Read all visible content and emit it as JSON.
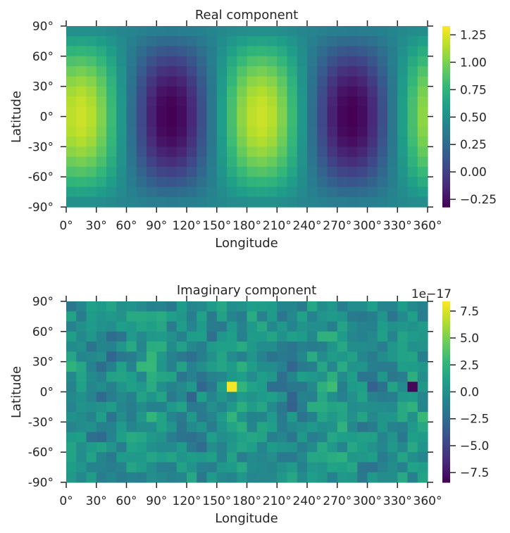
{
  "chart_data": [
    {
      "type": "heatmap",
      "title": "Real component",
      "xlabel": "Longitude",
      "ylabel": "Latitude",
      "xlim": [
        0,
        360
      ],
      "ylim": [
        -90,
        90
      ],
      "x_ticks": [
        0,
        30,
        60,
        90,
        120,
        150,
        180,
        210,
        240,
        270,
        300,
        330,
        360
      ],
      "x_tick_labels": [
        "0°",
        "30°",
        "60°",
        "90°",
        "120°",
        "150°",
        "180°",
        "210°",
        "240°",
        "270°",
        "300°",
        "330°",
        "360°"
      ],
      "y_ticks": [
        90,
        60,
        30,
        0,
        -30,
        -60,
        -90
      ],
      "y_tick_labels": [
        "90°",
        "60°",
        "30°",
        "0°",
        "-30°",
        "-60°",
        "-90°"
      ],
      "grid_cols": 36,
      "grid_rows": 18,
      "colormap": "viridis",
      "colorbar": {
        "min": -0.32,
        "max": 1.33,
        "ticks": [
          1.25,
          1.0,
          0.75,
          0.5,
          0.25,
          0.0,
          -0.25
        ],
        "tick_labels": [
          "1.25",
          "1.00",
          "0.75",
          "0.50",
          "0.25",
          "0.00",
          "−0.25"
        ],
        "offset_label": ""
      }
    },
    {
      "type": "heatmap",
      "title": "Imaginary component",
      "xlabel": "Longitude",
      "ylabel": "Latitude",
      "xlim": [
        0,
        360
      ],
      "ylim": [
        -90,
        90
      ],
      "x_ticks": [
        0,
        30,
        60,
        90,
        120,
        150,
        180,
        210,
        240,
        270,
        300,
        330,
        360
      ],
      "x_tick_labels": [
        "0°",
        "30°",
        "60°",
        "90°",
        "120°",
        "150°",
        "180°",
        "210°",
        "240°",
        "270°",
        "300°",
        "330°",
        "360°"
      ],
      "y_ticks": [
        90,
        60,
        30,
        0,
        -30,
        -60,
        -90
      ],
      "y_tick_labels": [
        "90°",
        "60°",
        "30°",
        "0°",
        "-30°",
        "-60°",
        "-90°"
      ],
      "grid_cols": 36,
      "grid_rows": 18,
      "colormap": "viridis",
      "colorbar": {
        "min": -8.4,
        "max": 8.4,
        "ticks": [
          7.5,
          5.0,
          2.5,
          0.0,
          -2.5,
          -5.0,
          -7.5
        ],
        "tick_labels": [
          "7.5",
          "5.0",
          "2.5",
          "0.0",
          "−2.5",
          "−5.0",
          "−7.5"
        ],
        "offset_label": "1e−17"
      }
    }
  ]
}
